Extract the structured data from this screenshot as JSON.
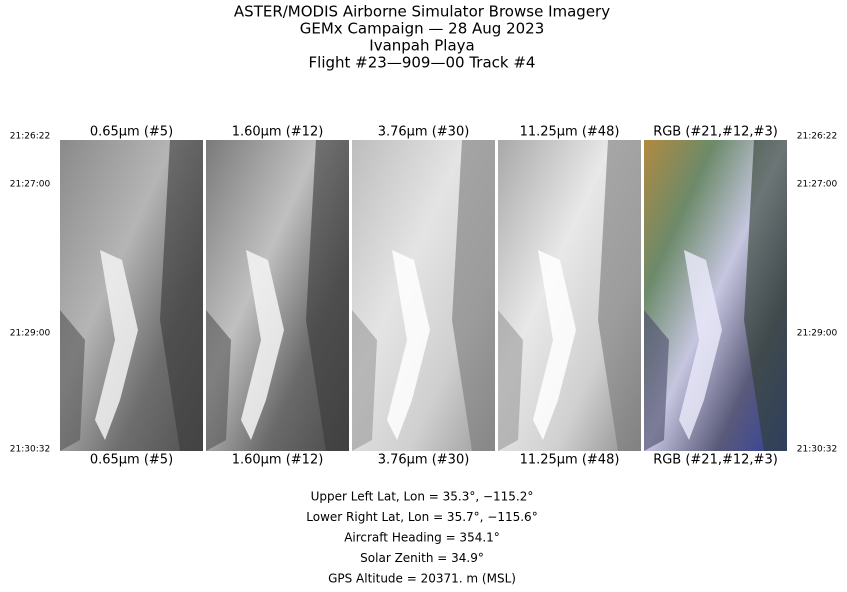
{
  "header": {
    "lines": [
      "ASTER/MODIS Airborne Simulator Browse Imagery",
      "GEMx Campaign — 28 Aug 2023",
      "Ivanpah Playa",
      "Flight #23—909—00 Track #4"
    ]
  },
  "panels": [
    {
      "label": "0.65μm (#5)"
    },
    {
      "label": "1.60μm (#12)"
    },
    {
      "label": "3.76μm (#30)"
    },
    {
      "label": "11.25μm (#48)"
    },
    {
      "label": "RGB (#21,#12,#3)"
    }
  ],
  "times": [
    "21:26:22",
    "21:27:00",
    "21:29:00",
    "21:30:32"
  ],
  "footer": {
    "lines": [
      "Upper Left Lat, Lon =   35.3°, −115.2°",
      "Lower Right Lat, Lon =   35.7°, −115.6°",
      "Aircraft Heading =  354.1°",
      "Solar Zenith =   34.9°",
      "GPS Altitude =  20371. m (MSL)"
    ]
  }
}
